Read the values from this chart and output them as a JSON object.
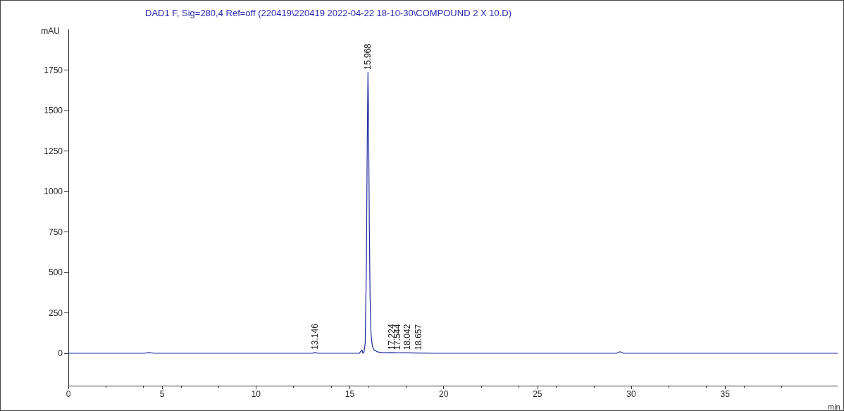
{
  "chart_data": {
    "type": "line",
    "title": "DAD1 F, Sig=280,4 Ref=off (220419\\220419 2022-04-22 18-10-30\\COMPOUND 2 X 10.D)",
    "xlabel": "min",
    "ylabel": "mAU",
    "marker": "none",
    "color": "#1c2a9c",
    "x": [
      0,
      2,
      4,
      4.3,
      4.6,
      5.5,
      8,
      10,
      12,
      13.0,
      13.146,
      13.3,
      14.5,
      15.5,
      15.65,
      15.7,
      15.75,
      15.82,
      15.88,
      15.93,
      15.968,
      16.0,
      16.04,
      16.08,
      16.13,
      16.2,
      16.3,
      16.5,
      16.8,
      17.224,
      17.544,
      18.042,
      18.657,
      19.5,
      21,
      23,
      25,
      27,
      29.2,
      29.4,
      29.6,
      32,
      35,
      38,
      41
    ],
    "values": [
      0,
      0,
      0,
      4,
      0,
      0,
      0,
      0,
      0,
      0,
      5,
      0,
      0,
      0,
      20,
      0,
      5,
      60,
      500,
      1300,
      1735,
      1450,
      800,
      350,
      120,
      45,
      20,
      8,
      3,
      4,
      3,
      3,
      2,
      0,
      0,
      0,
      0,
      0,
      0,
      10,
      0,
      0,
      0,
      0,
      0
    ],
    "xlim": [
      0,
      41
    ],
    "ylim": [
      -200,
      2000
    ],
    "xticks": [
      0,
      5,
      10,
      15,
      20,
      25,
      30,
      35
    ],
    "yticks": [
      0,
      250,
      500,
      750,
      1000,
      1250,
      1500,
      1750
    ],
    "annotations": [
      {
        "text": "13.146",
        "x": 13.146,
        "y": 5
      },
      {
        "text": "15.968",
        "x": 15.968,
        "y": 1735
      },
      {
        "text": "17.224",
        "x": 17.224,
        "y": 4
      },
      {
        "text": "17.544",
        "x": 17.544,
        "y": 3
      },
      {
        "text": "18.042",
        "x": 18.042,
        "y": 3
      },
      {
        "text": "18.657",
        "x": 18.657,
        "y": 2
      }
    ]
  }
}
